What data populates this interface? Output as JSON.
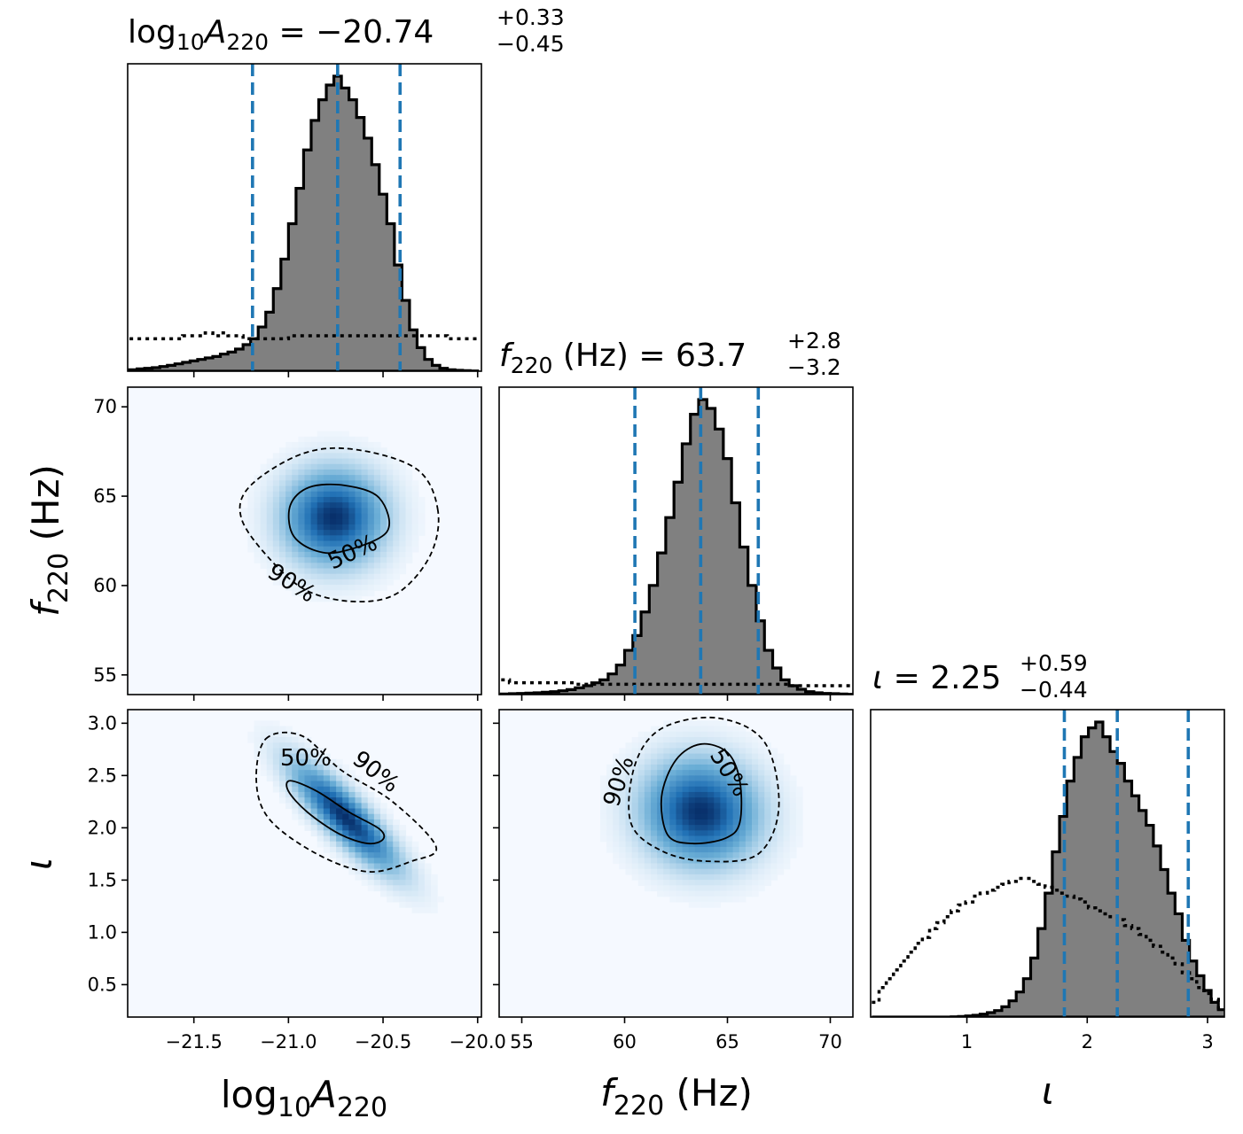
{
  "figure": {
    "type": "corner-plot",
    "colors": {
      "hist_fill": "#808080",
      "hist_edge": "#000000",
      "quantile_line": "#1f77b4",
      "density_low": "#f5f9ff",
      "density_high": "#08306b"
    }
  },
  "chart_data": [
    {
      "type": "histogram",
      "panel": "hist-logA",
      "title_text": {
        "base": "log",
        "sub10": "10",
        "var": "A",
        "sub": "220",
        "eq": " = −20.74",
        "sup": "+0.33",
        "low": "−0.45"
      },
      "xlim": [
        -21.85,
        -19.98
      ],
      "median": -20.74,
      "q_low": -21.19,
      "q_high": -20.41,
      "bins_x": [
        -21.82,
        -21.78,
        -21.74,
        -21.7,
        -21.66,
        -21.62,
        -21.58,
        -21.54,
        -21.5,
        -21.46,
        -21.42,
        -21.38,
        -21.34,
        -21.3,
        -21.26,
        -21.22,
        -21.18,
        -21.14,
        -21.1,
        -21.06,
        -21.02,
        -20.98,
        -20.94,
        -20.9,
        -20.86,
        -20.82,
        -20.78,
        -20.74,
        -20.7,
        -20.66,
        -20.62,
        -20.58,
        -20.54,
        -20.5,
        -20.46,
        -20.42,
        -20.38,
        -20.34,
        -20.3,
        -20.26,
        -20.22,
        -20.18,
        -20.14,
        -20.1,
        -20.06,
        -20.02
      ],
      "posterior": [
        0.005,
        0.008,
        0.01,
        0.012,
        0.016,
        0.02,
        0.025,
        0.03,
        0.035,
        0.04,
        0.045,
        0.05,
        0.058,
        0.065,
        0.075,
        0.09,
        0.11,
        0.15,
        0.2,
        0.28,
        0.38,
        0.5,
        0.62,
        0.75,
        0.85,
        0.92,
        0.97,
        1.0,
        0.96,
        0.92,
        0.86,
        0.79,
        0.7,
        0.6,
        0.5,
        0.36,
        0.24,
        0.14,
        0.08,
        0.04,
        0.02,
        0.01,
        0.005,
        0.003,
        0.002,
        0.001
      ],
      "prior": [
        0.11,
        0.11,
        0.11,
        0.11,
        0.11,
        0.11,
        0.11,
        0.12,
        0.12,
        0.12,
        0.13,
        0.12,
        0.13,
        0.12,
        0.12,
        0.11,
        0.11,
        0.11,
        0.11,
        0.11,
        0.11,
        0.12,
        0.12,
        0.12,
        0.12,
        0.12,
        0.12,
        0.12,
        0.12,
        0.12,
        0.12,
        0.12,
        0.12,
        0.12,
        0.12,
        0.12,
        0.12,
        0.12,
        0.12,
        0.12,
        0.12,
        0.12,
        0.11,
        0.11,
        0.11,
        0.11
      ]
    },
    {
      "type": "histogram",
      "panel": "hist-f220",
      "title_text": {
        "var": "f",
        "sub": "220",
        "eq": " (Hz) = 63.7",
        "sup": "+2.8",
        "low": "−3.2"
      },
      "xlim": [
        53.9,
        71.1
      ],
      "median": 63.7,
      "q_low": 60.5,
      "q_high": 66.5,
      "bins_x": [
        54.2,
        54.6,
        55.0,
        55.4,
        55.8,
        56.2,
        56.6,
        57.0,
        57.4,
        57.8,
        58.2,
        58.6,
        59.0,
        59.4,
        59.8,
        60.2,
        60.6,
        61.0,
        61.4,
        61.8,
        62.2,
        62.6,
        63.0,
        63.4,
        63.8,
        64.2,
        64.6,
        65.0,
        65.4,
        65.8,
        66.2,
        66.6,
        67.0,
        67.4,
        67.8,
        68.2,
        68.6,
        69.0,
        69.4,
        69.8,
        70.2,
        70.6,
        71.0
      ],
      "posterior": [
        0.002,
        0.003,
        0.004,
        0.005,
        0.006,
        0.008,
        0.01,
        0.013,
        0.017,
        0.023,
        0.03,
        0.04,
        0.05,
        0.07,
        0.1,
        0.15,
        0.2,
        0.28,
        0.37,
        0.48,
        0.6,
        0.72,
        0.85,
        0.95,
        1.0,
        0.97,
        0.9,
        0.8,
        0.65,
        0.5,
        0.37,
        0.25,
        0.15,
        0.09,
        0.05,
        0.03,
        0.018,
        0.01,
        0.006,
        0.004,
        0.003,
        0.002,
        0.001
      ],
      "prior": [
        0.05,
        0.04,
        0.04,
        0.04,
        0.04,
        0.04,
        0.04,
        0.04,
        0.04,
        0.035,
        0.035,
        0.035,
        0.035,
        0.035,
        0.035,
        0.035,
        0.035,
        0.035,
        0.035,
        0.035,
        0.035,
        0.035,
        0.035,
        0.035,
        0.035,
        0.035,
        0.035,
        0.035,
        0.035,
        0.035,
        0.035,
        0.035,
        0.035,
        0.035,
        0.035,
        0.03,
        0.03,
        0.03,
        0.03,
        0.03,
        0.03,
        0.03,
        0.03
      ]
    },
    {
      "type": "histogram",
      "panel": "hist-iota",
      "title_text": {
        "var": "ι",
        "eq": " = 2.25",
        "sup": "+0.59",
        "low": "−0.44"
      },
      "xlim": [
        0.2,
        3.14
      ],
      "median": 2.25,
      "q_low": 1.81,
      "q_high": 2.84,
      "bins_x": [
        0.24,
        0.3,
        0.36,
        0.42,
        0.48,
        0.54,
        0.6,
        0.66,
        0.72,
        0.78,
        0.84,
        0.9,
        0.96,
        1.02,
        1.08,
        1.14,
        1.2,
        1.26,
        1.32,
        1.38,
        1.44,
        1.5,
        1.56,
        1.62,
        1.68,
        1.74,
        1.8,
        1.86,
        1.92,
        1.98,
        2.04,
        2.1,
        2.16,
        2.22,
        2.28,
        2.34,
        2.4,
        2.46,
        2.52,
        2.58,
        2.64,
        2.7,
        2.76,
        2.82,
        2.88,
        2.94,
        3.0,
        3.06,
        3.12
      ],
      "posterior": [
        0.0,
        0.0,
        0.0,
        0.0,
        0.0,
        0.0,
        0.0,
        0.0,
        0.0,
        0.0,
        0.0,
        0.001,
        0.002,
        0.004,
        0.006,
        0.01,
        0.015,
        0.022,
        0.035,
        0.055,
        0.085,
        0.13,
        0.2,
        0.3,
        0.42,
        0.56,
        0.68,
        0.8,
        0.88,
        0.95,
        0.98,
        1.0,
        0.95,
        0.9,
        0.86,
        0.8,
        0.75,
        0.7,
        0.65,
        0.58,
        0.5,
        0.42,
        0.35,
        0.26,
        0.19,
        0.14,
        0.09,
        0.05,
        0.025
      ],
      "prior": [
        0.05,
        0.1,
        0.13,
        0.16,
        0.19,
        0.22,
        0.25,
        0.27,
        0.3,
        0.32,
        0.34,
        0.36,
        0.38,
        0.39,
        0.41,
        0.42,
        0.43,
        0.44,
        0.45,
        0.46,
        0.47,
        0.47,
        0.46,
        0.45,
        0.44,
        0.43,
        0.42,
        0.41,
        0.4,
        0.39,
        0.37,
        0.36,
        0.35,
        0.34,
        0.33,
        0.31,
        0.3,
        0.28,
        0.26,
        0.24,
        0.22,
        0.2,
        0.18,
        0.15,
        0.13,
        0.1,
        0.08,
        0.06,
        0.03
      ]
    },
    {
      "type": "heatmap",
      "panel": "density-f220-vs-logA",
      "xlim": [
        -21.85,
        -19.98
      ],
      "ylim": [
        53.9,
        71.1
      ],
      "peak": {
        "x": -20.76,
        "y": 63.8
      },
      "spread": {
        "x": 0.17,
        "y": 1.7
      },
      "corr": 0.0,
      "contours": [
        {
          "label": "50%",
          "points": [
            [
              -20.48,
              63.0
            ],
            [
              -20.52,
              64.9
            ],
            [
              -20.7,
              65.6
            ],
            [
              -20.89,
              65.5
            ],
            [
              -20.99,
              64.5
            ],
            [
              -20.98,
              62.9
            ],
            [
              -20.87,
              62.0
            ],
            [
              -20.72,
              61.9
            ]
          ]
        },
        {
          "label": "90%",
          "points": [
            [
              -20.21,
              64.2
            ],
            [
              -20.32,
              66.5
            ],
            [
              -20.64,
              67.6
            ],
            [
              -20.92,
              67.4
            ],
            [
              -21.2,
              65.6
            ],
            [
              -21.25,
              63.8
            ],
            [
              -21.1,
              61.5
            ],
            [
              -20.9,
              59.7
            ],
            [
              -20.64,
              59.1
            ],
            [
              -20.42,
              59.6
            ],
            [
              -20.25,
              61.7
            ]
          ]
        }
      ],
      "xticks": [
        -21.5,
        -21.0,
        -20.5,
        -20.0
      ],
      "xtick_labels": [
        "−21.5",
        "−21.0",
        "−20.5",
        "−20.0"
      ],
      "yticks": [
        55,
        60,
        65,
        70
      ],
      "ytick_labels": [
        "55",
        "60",
        "65",
        "70"
      ]
    },
    {
      "type": "heatmap",
      "panel": "density-iota-vs-logA",
      "xlim": [
        -21.85,
        -19.98
      ],
      "ylim": [
        0.19,
        3.13
      ],
      "peak": {
        "x": -20.7,
        "y": 2.1
      },
      "spread": {
        "x": 0.18,
        "y": 0.33
      },
      "corr": -0.85,
      "contours": [
        {
          "label": "50%",
          "points": [
            [
              -20.99,
              2.45
            ],
            [
              -20.85,
              2.35
            ],
            [
              -20.68,
              2.15
            ],
            [
              -20.52,
              1.99
            ],
            [
              -20.5,
              1.89
            ],
            [
              -20.58,
              1.85
            ],
            [
              -20.73,
              1.94
            ],
            [
              -20.9,
              2.15
            ],
            [
              -21.0,
              2.35
            ]
          ]
        },
        {
          "label": "90%",
          "points": [
            [
              -21.12,
              2.85
            ],
            [
              -20.93,
              2.88
            ],
            [
              -20.72,
              2.55
            ],
            [
              -20.45,
              2.25
            ],
            [
              -20.22,
              1.82
            ],
            [
              -20.35,
              1.68
            ],
            [
              -20.58,
              1.58
            ],
            [
              -20.85,
              1.75
            ],
            [
              -21.1,
              2.08
            ],
            [
              -21.17,
              2.45
            ]
          ]
        }
      ],
      "xticks": [
        -21.5,
        -21.0,
        -20.5,
        -20.0
      ],
      "xtick_labels": [
        "−21.5",
        "−21.0",
        "−20.5",
        "−20.0"
      ],
      "yticks": [
        0.5,
        1.0,
        1.5,
        2.0,
        2.5,
        3.0
      ],
      "ytick_labels": [
        "0.5",
        "1.0",
        "1.5",
        "2.0",
        "2.5",
        "3.0"
      ]
    },
    {
      "type": "heatmap",
      "panel": "density-iota-vs-f220",
      "xlim": [
        53.9,
        71.1
      ],
      "ylim": [
        0.19,
        3.13
      ],
      "peak": {
        "x": 63.7,
        "y": 2.15
      },
      "spread": {
        "x": 1.8,
        "y": 0.32
      },
      "corr": -0.05,
      "contours": [
        {
          "label": "50%",
          "points": [
            [
              65.6,
              2.45
            ],
            [
              65.0,
              2.72
            ],
            [
              63.7,
              2.8
            ],
            [
              62.5,
              2.65
            ],
            [
              61.8,
              2.3
            ],
            [
              62.1,
              1.93
            ],
            [
              63.3,
              1.85
            ],
            [
              64.9,
              1.9
            ],
            [
              65.6,
              2.05
            ]
          ]
        },
        {
          "label": "90%",
          "points": [
            [
              67.5,
              2.2
            ],
            [
              66.8,
              2.82
            ],
            [
              64.5,
              3.05
            ],
            [
              61.8,
              2.95
            ],
            [
              60.5,
              2.6
            ],
            [
              60.3,
              2.05
            ],
            [
              61.8,
              1.78
            ],
            [
              64.0,
              1.68
            ],
            [
              66.5,
              1.75
            ]
          ]
        }
      ],
      "xticks": [
        55,
        60,
        65,
        70
      ],
      "xtick_labels": [
        "55",
        "60",
        "65",
        "70"
      ],
      "yticks": [
        0.5,
        1.0,
        1.5,
        2.0,
        2.5,
        3.0
      ],
      "ytick_labels": [
        "0.5",
        "1.0",
        "1.5",
        "2.0",
        "2.5",
        "3.0"
      ]
    },
    {
      "type": "axis",
      "panel": "iota-x-axis",
      "xlim": [
        0.2,
        3.14
      ],
      "xticks": [
        1,
        2,
        3
      ],
      "xtick_labels": [
        "1",
        "2",
        "3"
      ]
    }
  ],
  "axis_labels": {
    "logA": {
      "base": "log",
      "sub10": "10",
      "var": "A",
      "sub": "220"
    },
    "f220": {
      "var": "f",
      "sub": "220",
      "unit": " (Hz)"
    },
    "iota": {
      "var": "ι"
    }
  },
  "contour_labels": {
    "p1": {
      "fifty": "50%",
      "ninety": "90%"
    },
    "p2": {
      "fifty": "50%",
      "ninety": "90%"
    },
    "p3": {
      "fifty": "50%",
      "ninety": "90%"
    }
  }
}
